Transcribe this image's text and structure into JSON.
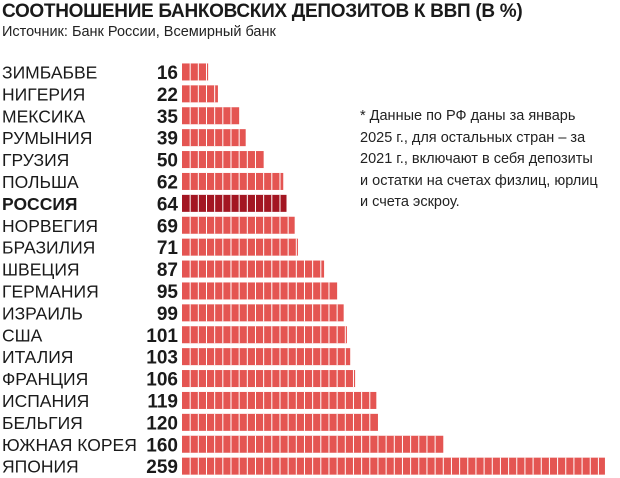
{
  "title": "СООТНОШЕНИЕ БАНКОВСКИХ ДЕПОЗИТОВ К ВВП (В %)",
  "source": "Источник: Банк России, Всемирный банк",
  "note": "* Данные по РФ даны за январь 2025 г., для остальных стран – за 2021 г., включают в себя депозиты и остатки на счетах физлиц, юрлиц и счета эскроу.",
  "colors": {
    "bar": "#e45552",
    "highlight": "#a31622",
    "segment_gap": "#ffffff",
    "text": "#222222"
  },
  "chart_data": {
    "type": "bar",
    "orientation": "horizontal",
    "categories": [
      "ЗИМБАБВЕ",
      "НИГЕРИЯ",
      "МЕКСИКА",
      "РУМЫНИЯ",
      "ГРУЗИЯ",
      "ПОЛЬША",
      "РОССИЯ",
      "НОРВЕГИЯ",
      "БРАЗИЛИЯ",
      "ШВЕЦИЯ",
      "ГЕРМАНИЯ",
      "ИЗРАИЛЬ",
      "США",
      "ИТАЛИЯ",
      "ФРАНЦИЯ",
      "ИСПАНИЯ",
      "БЕЛЬГИЯ",
      "ЮЖНАЯ КОРЕЯ",
      "ЯПОНИЯ"
    ],
    "values": [
      16,
      22,
      35,
      39,
      50,
      62,
      64,
      69,
      71,
      87,
      95,
      99,
      101,
      103,
      106,
      119,
      120,
      160,
      259
    ],
    "highlight": "РОССИЯ",
    "unit": "%",
    "segment_size": 5,
    "xlim": [
      0,
      259
    ],
    "grid": false,
    "legend": "none"
  }
}
